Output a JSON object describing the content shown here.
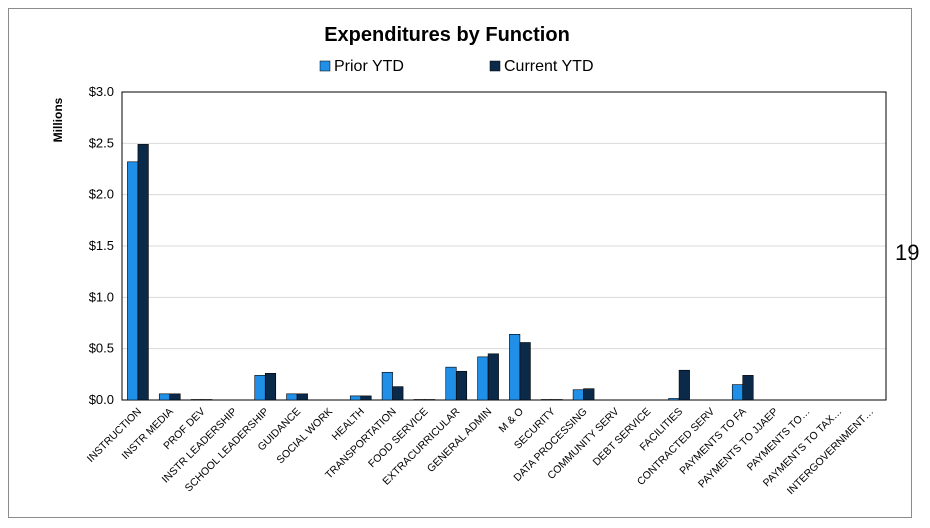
{
  "page_number": "19",
  "chart_data": {
    "type": "bar",
    "title": "Expenditures by Function",
    "ylabel": "Millions",
    "xlabel": "",
    "ylim": [
      0,
      3.0
    ],
    "yticks": [
      0,
      0.5,
      1.0,
      1.5,
      2.0,
      2.5,
      3.0
    ],
    "ytick_labels": [
      "$0.0",
      "$0.5",
      "$1.0",
      "$1.5",
      "$2.0",
      "$2.5",
      "$3.0"
    ],
    "grid": true,
    "legend_position": "top",
    "categories": [
      "INSTRUCTION",
      "INSTR MEDIA",
      "PROF DEV",
      "INSTR LEADERSHIP",
      "SCHOOL LEADERSHIP",
      "GUIDANCE",
      "SOCIAL WORK",
      "HEALTH",
      "TRANSPORTATION",
      "FOOD SERVICE",
      "EXTRACURRICULAR",
      "GENERAL ADMIN",
      "M & O",
      "SECURITY",
      "DATA PROCESSING",
      "COMMUNITY SERV",
      "DEBT SERVICE",
      "FACILITIES",
      "CONTRACTED SERV",
      "PAYMENTS TO FA",
      "PAYMENTS TO JJAEP",
      "PAYMENTS TO…",
      "PAYMENTS TO TAX…",
      "INTERGOVERNMENT…"
    ],
    "series": [
      {
        "name": "Prior YTD",
        "color": "#1f8fe8",
        "values": [
          2.32,
          0.06,
          0.005,
          0.0,
          0.24,
          0.06,
          0.0,
          0.04,
          0.27,
          0.005,
          0.32,
          0.42,
          0.64,
          0.005,
          0.1,
          0.0,
          0.0,
          0.015,
          0.0,
          0.15,
          0.0,
          0.0,
          0.0,
          0.0
        ]
      },
      {
        "name": "Current YTD",
        "color": "#0b2a4a",
        "values": [
          2.49,
          0.06,
          0.005,
          0.0,
          0.26,
          0.06,
          0.0,
          0.04,
          0.13,
          0.005,
          0.28,
          0.45,
          0.56,
          0.005,
          0.11,
          0.0,
          0.0,
          0.29,
          0.0,
          0.24,
          0.0,
          0.0,
          0.0,
          0.0
        ]
      }
    ]
  }
}
